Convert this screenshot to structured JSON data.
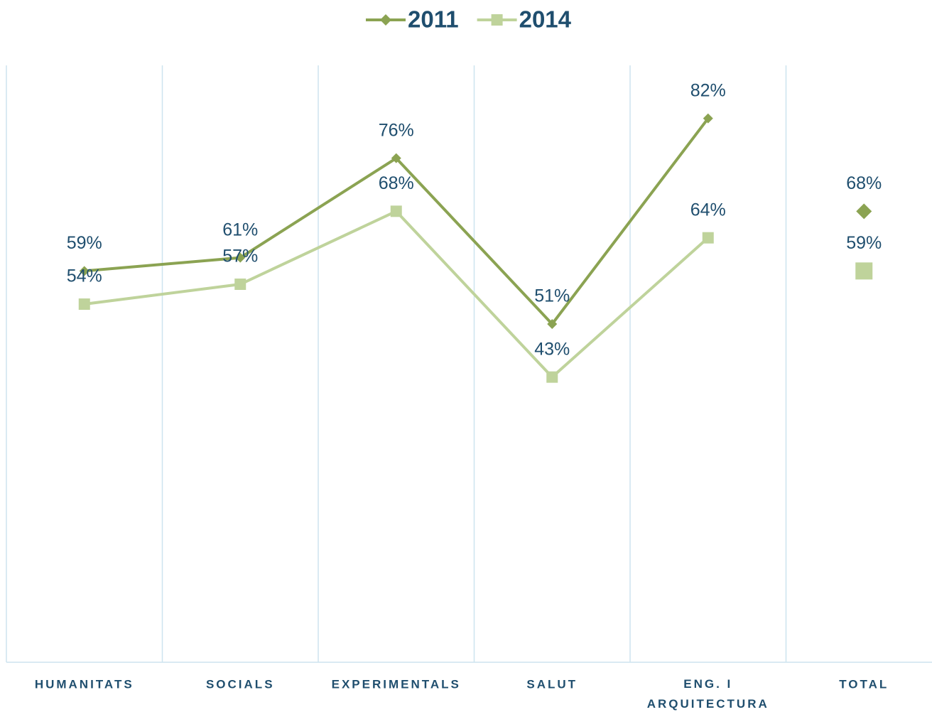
{
  "chart_data": {
    "type": "line",
    "categories": [
      "HUMANITATS",
      "SOCIALS",
      "EXPERIMENTALS",
      "SALUT",
      "ENG. I ARQUITECTURA",
      "TOTAL"
    ],
    "series": [
      {
        "name": "2011",
        "color": "#8ba352",
        "marker": "diamond",
        "values": [
          59,
          61,
          76,
          51,
          82,
          68
        ],
        "value_labels": [
          "59%",
          "61%",
          "76%",
          "51%",
          "82%",
          "68%"
        ]
      },
      {
        "name": "2014",
        "color": "#bfd39b",
        "marker": "square",
        "values": [
          54,
          57,
          68,
          43,
          64,
          59
        ],
        "value_labels": [
          "54%",
          "57%",
          "68%",
          "43%",
          "64%",
          "59%"
        ]
      }
    ],
    "connect_last": false,
    "ylim": [
      0,
      90
    ],
    "grid": true,
    "legend": "top"
  }
}
